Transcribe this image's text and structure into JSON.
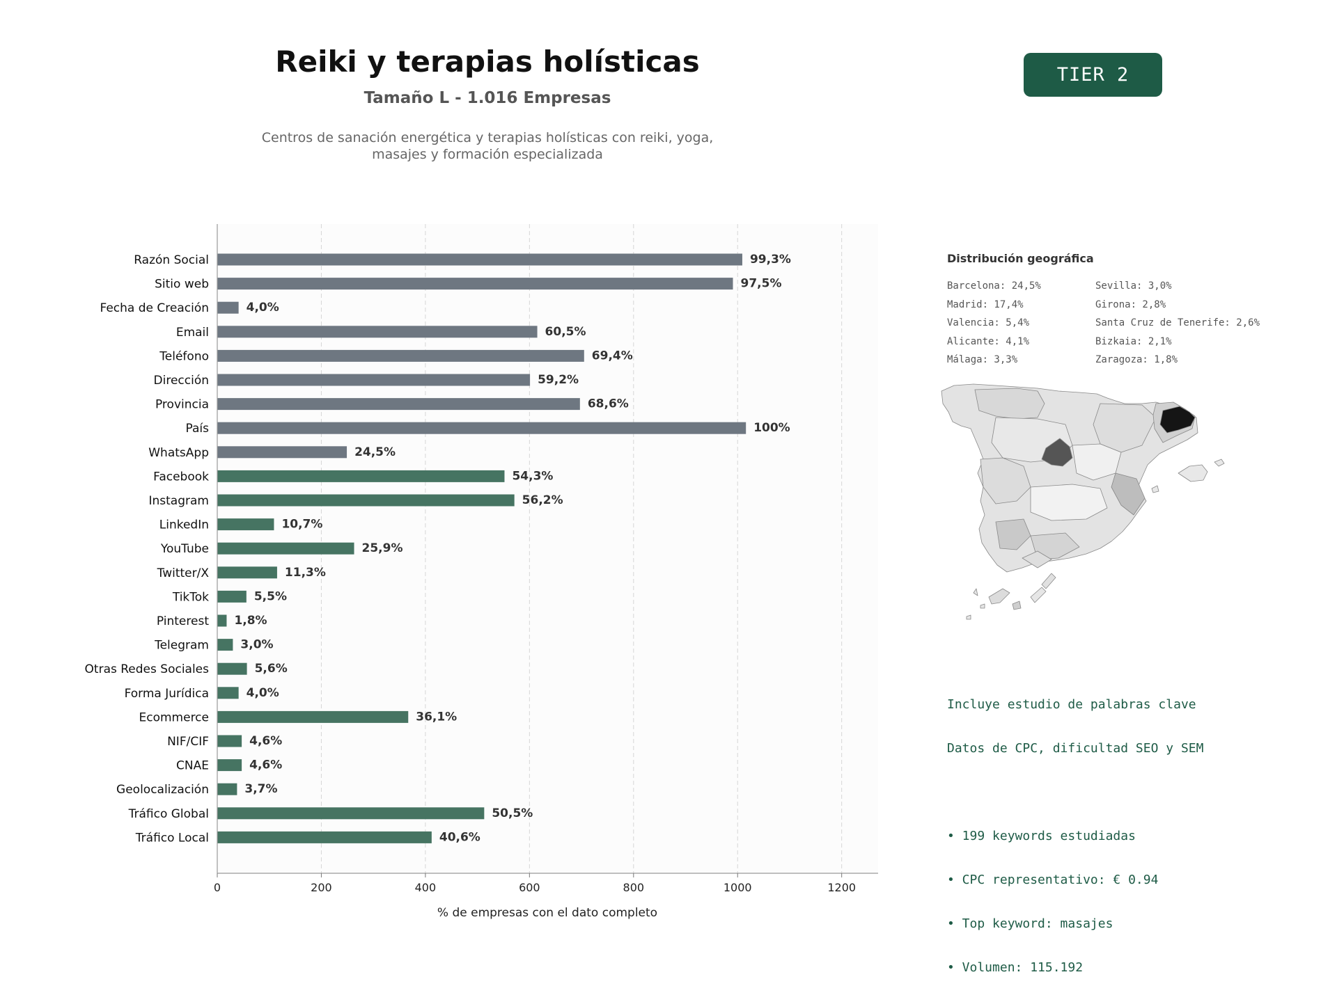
{
  "header": {
    "title": "Reiki y terapias holísticas",
    "subtitle": "Tamaño L - 1.016 Empresas",
    "description_line1": "Centros de sanación energética y terapias holísticas con reiki, yoga,",
    "description_line2": "masajes y formación especializada",
    "tier": "TIER 2"
  },
  "colors": {
    "gray_bar": "#6e7781",
    "green_bar": "#467462",
    "tier_bg": "#1e5b46",
    "keyword_text": "#1e5b46"
  },
  "chart_data": {
    "type": "bar",
    "orientation": "horizontal",
    "categories": [
      "Razón Social",
      "Sitio web",
      "Fecha de Creación",
      "Email",
      "Teléfono",
      "Dirección",
      "Provincia",
      "País",
      "WhatsApp",
      "Facebook",
      "Instagram",
      "LinkedIn",
      "YouTube",
      "Twitter/X",
      "TikTok",
      "Pinterest",
      "Telegram",
      "Otras Redes Sociales",
      "Forma Jurídica",
      "Ecommerce",
      "NIF/CIF",
      "CNAE",
      "Geolocalización",
      "Tráfico Global",
      "Tráfico Local"
    ],
    "values": [
      1009,
      991,
      41,
      615,
      705,
      601,
      697,
      1016,
      249,
      552,
      571,
      109,
      263,
      115,
      56,
      18,
      30,
      57,
      41,
      367,
      47,
      47,
      38,
      513,
      412
    ],
    "labels": [
      "99,3%",
      "97,5%",
      "4,0%",
      "60,5%",
      "69,4%",
      "59,2%",
      "68,6%",
      "100%",
      "24,5%",
      "54,3%",
      "56,2%",
      "10,7%",
      "25,9%",
      "11,3%",
      "5,5%",
      "1,8%",
      "3,0%",
      "5,6%",
      "4,0%",
      "36,1%",
      "4,6%",
      "4,6%",
      "3,7%",
      "50,5%",
      "40,6%"
    ],
    "groups": [
      "gray",
      "gray",
      "gray",
      "gray",
      "gray",
      "gray",
      "gray",
      "gray",
      "gray",
      "green",
      "green",
      "green",
      "green",
      "green",
      "green",
      "green",
      "green",
      "green",
      "green",
      "green",
      "green",
      "green",
      "green",
      "green",
      "green"
    ],
    "xlabel": "% de empresas con el dato completo",
    "xlim": [
      0,
      1270
    ],
    "xticks": [
      0,
      200,
      400,
      600,
      800,
      1000,
      1200
    ],
    "grid": "vertical dashed"
  },
  "geo": {
    "title": "Distribución geográfica",
    "col1": [
      "Barcelona: 24,5%",
      "Madrid: 17,4%",
      "Valencia: 5,4%",
      "Alicante: 4,1%",
      "Málaga: 3,3%"
    ],
    "col2": [
      "Sevilla: 3,0%",
      "Girona: 2,8%",
      "Santa Cruz de Tenerife: 2,6%",
      "Bizkaia: 2,1%",
      "Zaragoza: 1,8%"
    ]
  },
  "keywords": {
    "line1": "Incluye estudio de palabras clave",
    "line2": "Datos de CPC, dificultad SEO y SEM",
    "bullets": [
      "• 199 keywords estudiadas",
      "• CPC representativo: € 0.94",
      "• Top keyword: masajes",
      "• Volumen: 115.192"
    ]
  }
}
